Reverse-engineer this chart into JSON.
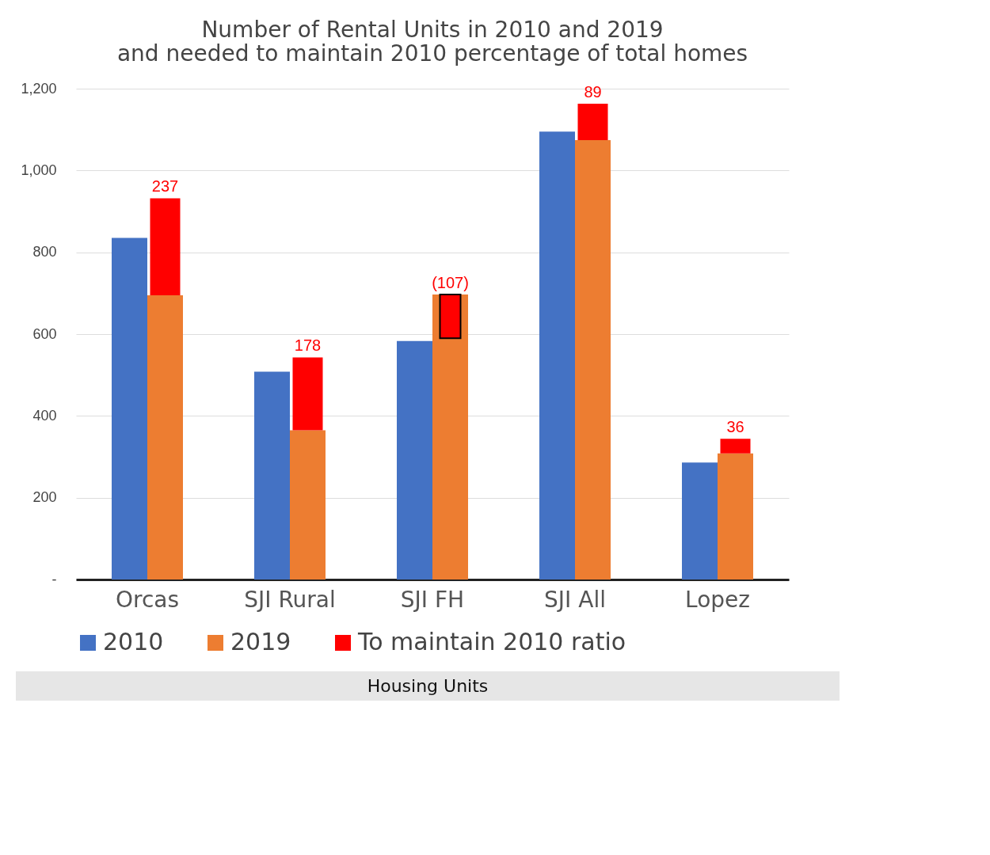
{
  "chart_data": {
    "type": "bar",
    "title": "Number of Rental Units in 2010 and 2019\nand needed to maintain 2010 percentage of total homes",
    "xlabel": "Housing Units",
    "categories": [
      "Orcas",
      "SJI Rural",
      "SJI FH",
      "SJI All",
      "Lopez"
    ],
    "series": [
      {
        "name": "2010",
        "color": "#4472c4",
        "values": [
          835,
          508,
          583,
          1095,
          286
        ]
      },
      {
        "name": "2019",
        "color": "#ed7d31",
        "values": [
          695,
          365,
          697,
          1074,
          308
        ]
      },
      {
        "name": "To maintain 2010 ratio",
        "color": "#ff0000",
        "base": [
          695,
          365,
          697,
          1074,
          308
        ],
        "values": [
          237,
          178,
          -107,
          89,
          36
        ],
        "value_labels": [
          "237",
          "178",
          "(107)",
          "89",
          "36"
        ]
      }
    ],
    "ylim": [
      0,
      1200
    ],
    "yticks": [
      {
        "value": 0,
        "label": "-"
      },
      200,
      400,
      600,
      800,
      {
        "value": 1000,
        "label": "1,000"
      },
      {
        "value": 1200,
        "label": "1,200"
      }
    ],
    "grid": true,
    "legend": "bottom"
  }
}
